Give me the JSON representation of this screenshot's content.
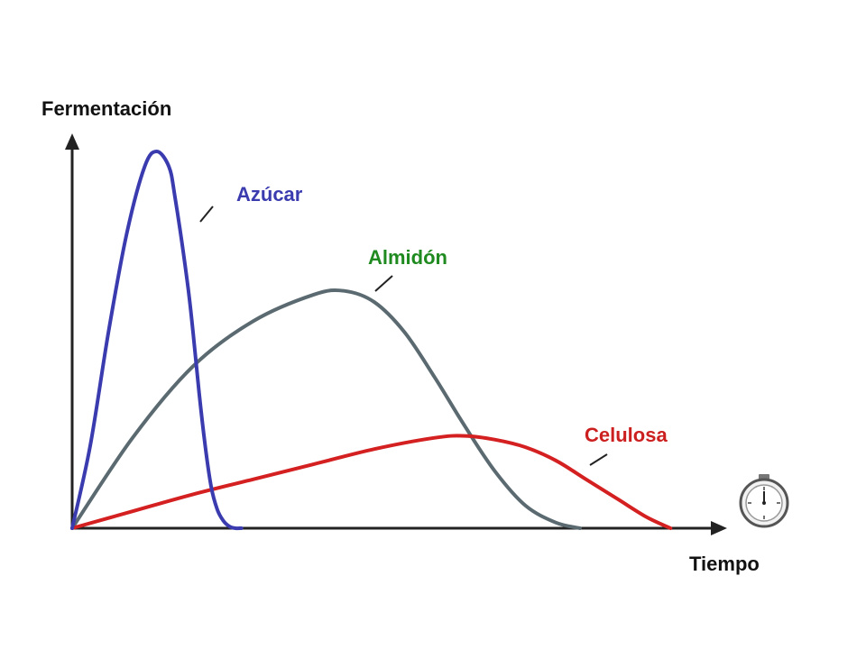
{
  "chart_data": {
    "type": "line",
    "xlabel": "Tiempo",
    "ylabel": "Fermentación",
    "xlim": [
      0,
      100
    ],
    "ylim": [
      0,
      100
    ],
    "grid": false,
    "ticks": "none",
    "series": [
      {
        "name": "Azúcar",
        "color": "#3b3bb0",
        "x": [
          0,
          3,
          6,
          9,
          12,
          14,
          16,
          17,
          19,
          20,
          21,
          22,
          23,
          24,
          25,
          26,
          27,
          28
        ],
        "y": [
          0,
          22,
          52,
          78,
          96,
          100,
          96,
          88,
          66,
          52,
          36,
          22,
          11,
          5,
          2,
          0.5,
          0,
          0
        ]
      },
      {
        "name": "Almidón",
        "color": "#5a6a70",
        "x": [
          0,
          10,
          20,
          30,
          40,
          45,
          50,
          55,
          60,
          65,
          70,
          75,
          80,
          84
        ],
        "y": [
          0,
          24,
          43,
          55,
          62,
          63,
          60,
          52,
          40,
          27,
          15,
          6,
          1.5,
          0
        ]
      },
      {
        "name": "Celulosa",
        "color": "#d42020",
        "x": [
          0,
          10,
          20,
          30,
          40,
          50,
          60,
          65,
          70,
          75,
          80,
          85,
          90,
          95,
          99
        ],
        "y": [
          0,
          4.5,
          9,
          13,
          17,
          21,
          24,
          24.5,
          23.5,
          21.5,
          18,
          13,
          8,
          3,
          0
        ]
      }
    ],
    "labels": {
      "azucar": "Azúcar",
      "almidon": "Almidón",
      "celulosa": "Celulosa"
    },
    "icon": "stopwatch-icon"
  }
}
